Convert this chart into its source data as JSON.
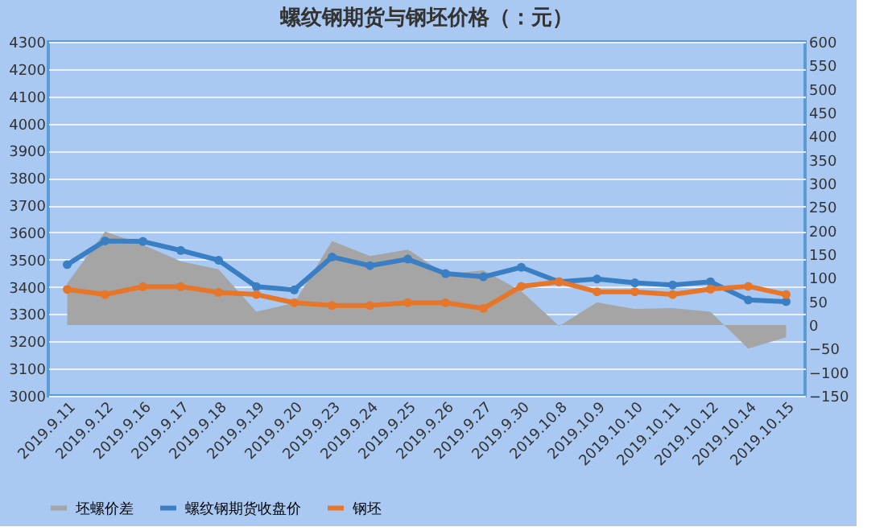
{
  "chart_data": {
    "type": "line",
    "title": "螺纹钢期货与钢坯价格（：元）",
    "categories": [
      "2019.9.11",
      "2019.9.12",
      "2019.9.16",
      "2019.9.17",
      "2019.9.18",
      "2019.9.19",
      "2019.9.20",
      "2019.9.23",
      "2019.9.24",
      "2019.9.25",
      "2019.9.26",
      "2019.9.27",
      "2019.9.30",
      "2019.10.8",
      "2019.10.9",
      "2019.10.10",
      "2019.10.11",
      "2019.10.12",
      "2019.10.14",
      "2019.10.15"
    ],
    "series": [
      {
        "name": "坯螺价差",
        "type": "area",
        "axis": "y2",
        "color": "#a5a5a5",
        "values": [
          88,
          198,
          170,
          135,
          118,
          28,
          47,
          178,
          146,
          160,
          108,
          116,
          72,
          -2,
          48,
          34,
          36,
          28,
          -50,
          -26
        ]
      },
      {
        "name": "螺纹钢期货收盘价",
        "color": "#3a7fc4",
        "marker": "circle",
        "values": [
          3482,
          3569,
          3567,
          3534,
          3498,
          3401,
          3389,
          3510,
          3478,
          3502,
          3449,
          3437,
          3472,
          3419,
          3429,
          3415,
          3407,
          3419,
          3352,
          3346
        ]
      },
      {
        "name": "钢坯",
        "color": "#e6762a",
        "marker": "circle",
        "values": [
          3391,
          3372,
          3401,
          3401,
          3380,
          3372,
          3342,
          3332,
          3332,
          3342,
          3342,
          3321,
          3402,
          3419,
          3382,
          3382,
          3372,
          3392,
          3402,
          3372
        ]
      }
    ],
    "ylim": [
      3000,
      4300
    ],
    "yticks": [
      3000,
      3100,
      3200,
      3300,
      3400,
      3500,
      3600,
      3700,
      3800,
      3900,
      4000,
      4100,
      4200,
      4300
    ],
    "y2lim": [
      -150,
      600
    ],
    "y2ticks": [
      -150,
      -100,
      -50,
      0,
      50,
      100,
      150,
      200,
      250,
      300,
      350,
      400,
      450,
      500,
      550,
      600
    ],
    "grid": "y",
    "legend": "bottom"
  }
}
